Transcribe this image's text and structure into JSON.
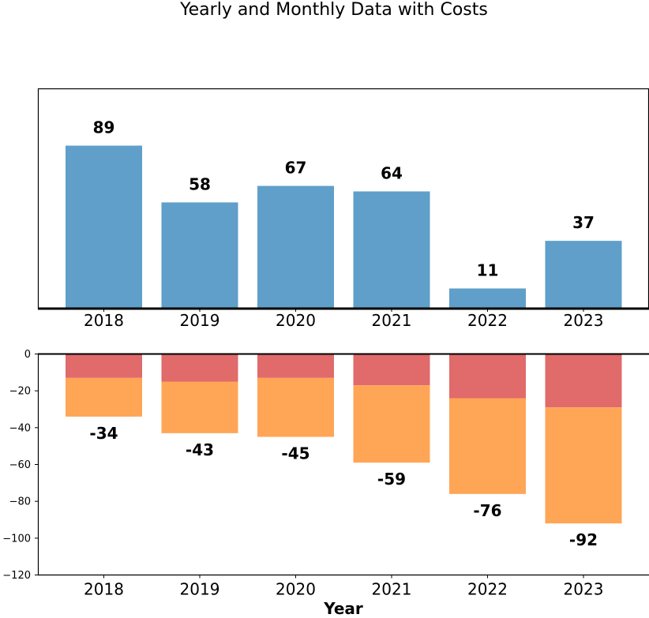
{
  "chart_data": [
    {
      "type": "bar",
      "title": "Yearly and Monthly Data with Costs",
      "categories": [
        "2018",
        "2019",
        "2020",
        "2021",
        "2022",
        "2023"
      ],
      "values": [
        89,
        58,
        67,
        64,
        11,
        37
      ],
      "xlabel": "",
      "ylabel": "",
      "ylim": [
        0,
        120
      ],
      "grid": false,
      "colors": {
        "bar": "#5f9fca"
      }
    },
    {
      "type": "bar",
      "stacked": true,
      "categories": [
        "2018",
        "2019",
        "2020",
        "2021",
        "2022",
        "2023"
      ],
      "series": [
        {
          "values": [
            -13,
            -15,
            -13,
            -17,
            -24,
            -29
          ],
          "color": "#e16a6a"
        },
        {
          "values": [
            -21,
            -28,
            -32,
            -42,
            -52,
            -63
          ],
          "color": "#ffa556"
        }
      ],
      "totals": [
        -34,
        -43,
        -45,
        -59,
        -76,
        -92
      ],
      "yticks": [
        0,
        -20,
        -40,
        -60,
        -80,
        -100,
        -120
      ],
      "xlabel": "Year",
      "ylabel": "",
      "ylim": [
        -120,
        0
      ],
      "grid": false
    }
  ]
}
